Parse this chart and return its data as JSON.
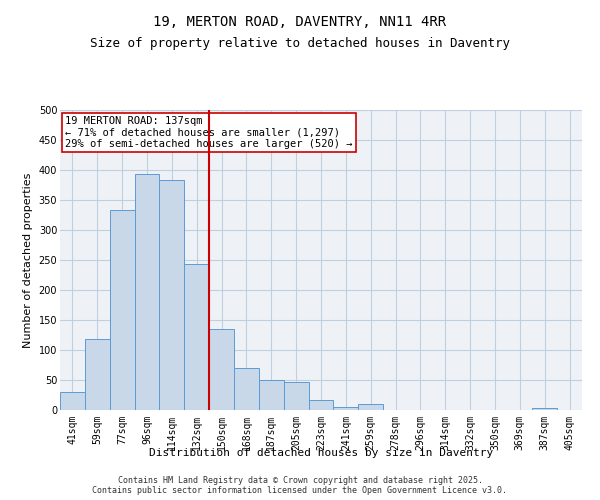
{
  "title": "19, MERTON ROAD, DAVENTRY, NN11 4RR",
  "subtitle": "Size of property relative to detached houses in Daventry",
  "xlabel": "Distribution of detached houses by size in Daventry",
  "ylabel": "Number of detached properties",
  "categories": [
    "41sqm",
    "59sqm",
    "77sqm",
    "96sqm",
    "114sqm",
    "132sqm",
    "150sqm",
    "168sqm",
    "187sqm",
    "205sqm",
    "223sqm",
    "241sqm",
    "259sqm",
    "278sqm",
    "296sqm",
    "314sqm",
    "332sqm",
    "350sqm",
    "369sqm",
    "387sqm",
    "405sqm"
  ],
  "values": [
    30,
    118,
    333,
    394,
    383,
    243,
    135,
    70,
    50,
    46,
    16,
    5,
    10,
    0,
    0,
    0,
    0,
    0,
    0,
    4,
    0
  ],
  "bar_color": "#c8d8e8",
  "bar_edge_color": "#5b9bd5",
  "vline_x": 5.5,
  "vline_color": "#cc0000",
  "annotation_text": "19 MERTON ROAD: 137sqm\n← 71% of detached houses are smaller (1,297)\n29% of semi-detached houses are larger (520) →",
  "annotation_bbox_color": "#cc0000",
  "ylim": [
    0,
    500
  ],
  "yticks": [
    0,
    50,
    100,
    150,
    200,
    250,
    300,
    350,
    400,
    450,
    500
  ],
  "grid_color": "#c0cfe0",
  "bg_color": "#eef2f7",
  "footer": "Contains HM Land Registry data © Crown copyright and database right 2025.\nContains public sector information licensed under the Open Government Licence v3.0.",
  "title_fontsize": 10,
  "subtitle_fontsize": 9,
  "axis_label_fontsize": 8,
  "tick_fontsize": 7,
  "annotation_fontsize": 7.5,
  "footer_fontsize": 6
}
